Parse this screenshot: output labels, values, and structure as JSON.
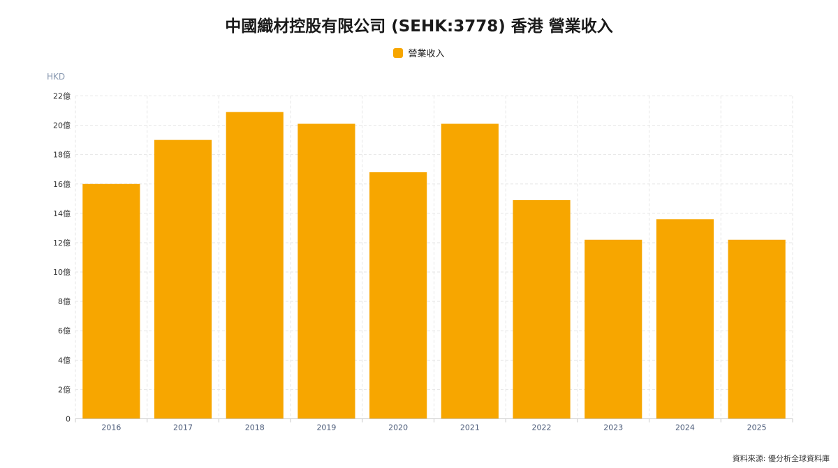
{
  "chart_data": {
    "type": "bar",
    "title": "中國織材控股有限公司 (SEHK:3778) 香港 營業收入",
    "ylabel": "HKD",
    "categories": [
      "2016",
      "2017",
      "2018",
      "2019",
      "2020",
      "2021",
      "2022",
      "2023",
      "2024",
      "2025"
    ],
    "series": [
      {
        "name": "營業收入",
        "values": [
          16.0,
          19.0,
          20.9,
          20.1,
          16.8,
          20.1,
          14.9,
          12.2,
          13.6,
          12.2
        ],
        "color": "#F7A600"
      }
    ],
    "ylim": [
      0,
      22
    ],
    "yticks": [
      0,
      2,
      4,
      6,
      8,
      10,
      12,
      14,
      16,
      18,
      20,
      22
    ],
    "ytick_labels": [
      "0",
      "2億",
      "4億",
      "6億",
      "8億",
      "10億",
      "12億",
      "14億",
      "16億",
      "18億",
      "20億",
      "22億"
    ],
    "grid": true,
    "legend_position": "top-center"
  },
  "source_note": "資料來源: 優分析全球資料庫"
}
